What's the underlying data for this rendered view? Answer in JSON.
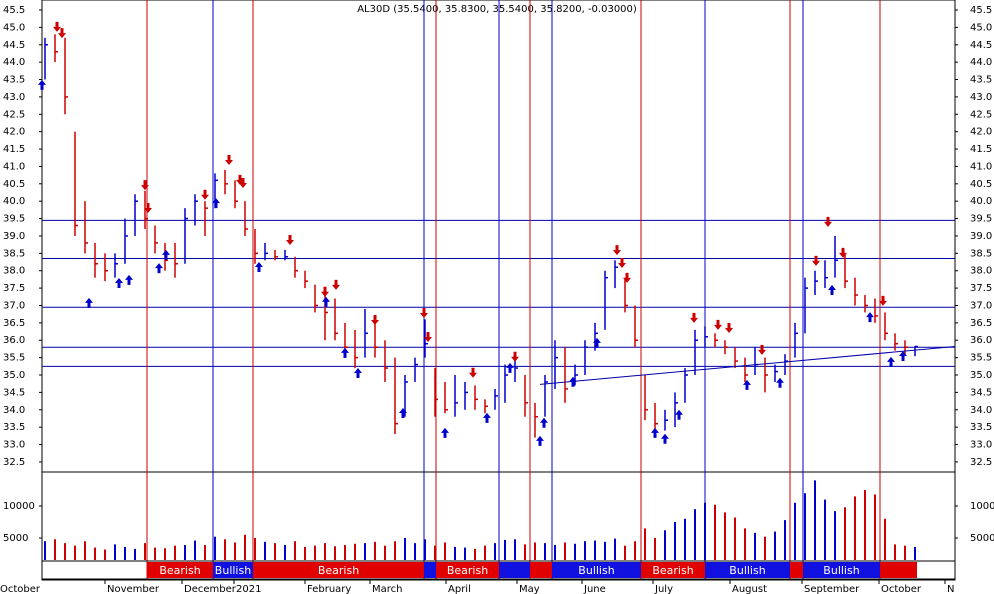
{
  "chart_data": [
    {
      "type": "ohlc",
      "title": "AL30D (35.5400, 35.8300, 35.5400, 35.8200, -0.03000)",
      "up_color": "#0000cc",
      "down_color": "#cc0000",
      "xlim": [
        -0.3,
        91
      ],
      "ylim": [
        32.21,
        45.73
      ],
      "yticks": [
        45.5,
        {
          "value": 45,
          "label": "45.0"
        },
        44.5,
        {
          "value": 44,
          "label": "44.0"
        },
        43.5,
        {
          "value": 43,
          "label": "43.0"
        },
        42.5,
        {
          "value": 42,
          "label": "42.0"
        },
        41.5,
        {
          "value": 41,
          "label": "41.0"
        },
        40.5,
        {
          "value": 40,
          "label": "40.0"
        },
        39.5,
        {
          "value": 39,
          "label": "39.0"
        },
        38.5,
        {
          "value": 38,
          "label": "38.0"
        },
        37.5,
        {
          "value": 37,
          "label": "37.0"
        },
        36.5,
        {
          "value": 36,
          "label": "36.0"
        },
        35.5,
        {
          "value": 35,
          "label": "35.0"
        },
        34.5,
        {
          "value": 34,
          "label": "34.0"
        },
        33.5,
        {
          "value": 33,
          "label": "33.0"
        },
        32.5
      ],
      "high": [
        44.7,
        44.8,
        44.7,
        42,
        40,
        38.8,
        38.5,
        38.5,
        39.5,
        40.2,
        40.3,
        39.3,
        38.8,
        38.8,
        39.8,
        40.2,
        40,
        40.8,
        40.9,
        40.6,
        40,
        39.2,
        38.8,
        38.6,
        38.6,
        38.4,
        38,
        37.6,
        37.3,
        37.2,
        36.5,
        36.3,
        36.9,
        36.5,
        36,
        35.5,
        35,
        35.5,
        36.6,
        35.2,
        34.8,
        35,
        34.8,
        34.7,
        34.3,
        34.6,
        35.3,
        35.5,
        35,
        34.2,
        35,
        36,
        35.8,
        35.3,
        36,
        36.5,
        38,
        38.3,
        37.8,
        37,
        35,
        34.2,
        34,
        34.5,
        35.2,
        36.3,
        36.4,
        36.2,
        36,
        35.8,
        35.5,
        35.8,
        35.5,
        35.3,
        35.6,
        36.5,
        37.8,
        38,
        38.3,
        39,
        38.5,
        37.8,
        37.3,
        37.2,
        36.8,
        36.2,
        36,
        35.83
      ],
      "low": [
        43.5,
        44,
        42.5,
        39,
        38.5,
        37.8,
        37.7,
        37.8,
        38.2,
        39,
        39.2,
        38.5,
        38,
        37.8,
        38.2,
        39.3,
        39,
        39.8,
        40.2,
        39.8,
        39,
        38.2,
        38.3,
        38.3,
        38.3,
        37.8,
        37.5,
        36.8,
        36,
        36,
        35.5,
        35.2,
        35.5,
        35.5,
        34.8,
        33.3,
        33.8,
        34.8,
        35.5,
        33.8,
        33.9,
        33.8,
        34,
        34,
        33.9,
        34,
        34.2,
        34.8,
        33.8,
        33.2,
        33.8,
        34.6,
        34.2,
        34.7,
        35,
        35.7,
        36.3,
        37.5,
        36.8,
        35.8,
        33.7,
        33.3,
        33.4,
        33.5,
        34.2,
        35,
        35.8,
        35.8,
        35.6,
        35.2,
        34.8,
        35,
        34.5,
        34.8,
        35,
        35.5,
        36.2,
        37.3,
        37.5,
        37.8,
        37.5,
        37,
        36.8,
        36.5,
        36,
        35.7,
        35.6,
        35.54
      ],
      "close": [
        44.5,
        44.3,
        43,
        39.3,
        38.8,
        38.2,
        38,
        38.2,
        39,
        40,
        39.5,
        38.8,
        38.3,
        38.2,
        39.5,
        40,
        39.8,
        40.6,
        40.5,
        40,
        39.2,
        38.5,
        38.5,
        38.4,
        38.4,
        38,
        37.7,
        37,
        36.8,
        36.2,
        35.8,
        35.5,
        36.2,
        35.8,
        35.2,
        33.6,
        34.8,
        35.3,
        35.9,
        34.3,
        34,
        34.2,
        34.5,
        34.3,
        34.1,
        34.4,
        35,
        35.2,
        34.2,
        33.8,
        34.8,
        35.5,
        34.6,
        35,
        35.8,
        36.2,
        37.8,
        38.1,
        37,
        36,
        34,
        33.6,
        33.7,
        34.2,
        35,
        36,
        36.1,
        36,
        35.8,
        35.4,
        35,
        35.3,
        35,
        35.1,
        35.4,
        36.2,
        37.5,
        37.7,
        37.8,
        38.3,
        37.7,
        37.3,
        37,
        36.7,
        36.2,
        35.9,
        35.8,
        35.82
      ],
      "levels": [
        39.45,
        38.35,
        36.95,
        35.8,
        35.25
      ],
      "level_color": "#0000aa",
      "trendline": {
        "x": [
          49.5,
          91
        ],
        "y": [
          34.73,
          35.82
        ]
      },
      "markers": [
        {
          "x": 10.2,
          "color": "#cc0000"
        },
        {
          "x": 16.8,
          "color": "#0000cc"
        },
        {
          "x": 20.8,
          "color": "#cc0000"
        },
        {
          "x": 37.9,
          "color": "#0000cc"
        },
        {
          "x": 39.1,
          "color": "#cc0000"
        },
        {
          "x": 45.4,
          "color": "#0000cc"
        },
        {
          "x": 48.5,
          "color": "#cc0000"
        },
        {
          "x": 50.7,
          "color": "#0000cc"
        },
        {
          "x": 59.6,
          "color": "#cc0000"
        },
        {
          "x": 66,
          "color": "#0000cc"
        },
        {
          "x": 74.5,
          "color": "#cc0000"
        },
        {
          "x": 75.8,
          "color": "#0000cc"
        },
        {
          "x": 83.5,
          "color": "#cc0000"
        }
      ],
      "sell_signals": [
        {
          "x": 1.2,
          "y": 44.87
        },
        {
          "x": 1.7,
          "y": 44.69
        },
        {
          "x": 10,
          "y": 40.32
        },
        {
          "x": 10.3,
          "y": 39.66
        },
        {
          "x": 16,
          "y": 40.04
        },
        {
          "x": 18.4,
          "y": 41.04
        },
        {
          "x": 19.5,
          "y": 40.47
        },
        {
          "x": 19.8,
          "y": 40.38
        },
        {
          "x": 24.5,
          "y": 38.74
        },
        {
          "x": 28,
          "y": 37.25
        },
        {
          "x": 29.1,
          "y": 37.45
        },
        {
          "x": 33,
          "y": 36.44
        },
        {
          "x": 37.9,
          "y": 36.64
        },
        {
          "x": 38.3,
          "y": 35.95
        },
        {
          "x": 42.8,
          "y": 34.92
        },
        {
          "x": 47,
          "y": 35.38
        },
        {
          "x": 57.2,
          "y": 38.45
        },
        {
          "x": 57.7,
          "y": 38.08
        },
        {
          "x": 58.2,
          "y": 37.65
        },
        {
          "x": 64.9,
          "y": 36.5
        },
        {
          "x": 67.3,
          "y": 36.3
        },
        {
          "x": 68.4,
          "y": 36.21
        },
        {
          "x": 71.7,
          "y": 35.58
        },
        {
          "x": 78.3,
          "y": 39.26
        },
        {
          "x": 77.1,
          "y": 38.14
        },
        {
          "x": 79.8,
          "y": 38.37
        },
        {
          "x": 83.8,
          "y": 36.99
        }
      ],
      "buy_signals": [
        {
          "x": -0.3,
          "y": 43.49
        },
        {
          "x": 4.4,
          "y": 37.22
        },
        {
          "x": 7.4,
          "y": 37.79
        },
        {
          "x": 8.4,
          "y": 37.88
        },
        {
          "x": 11.4,
          "y": 38.22
        },
        {
          "x": 12.1,
          "y": 38.6
        },
        {
          "x": 17.1,
          "y": 40.09
        },
        {
          "x": 21.4,
          "y": 38.25
        },
        {
          "x": 28.1,
          "y": 37.25
        },
        {
          "x": 30,
          "y": 35.78
        },
        {
          "x": 31.3,
          "y": 35.2
        },
        {
          "x": 35.8,
          "y": 34.05
        },
        {
          "x": 40,
          "y": 33.48
        },
        {
          "x": 44.2,
          "y": 33.91
        },
        {
          "x": 46.5,
          "y": 35.35
        },
        {
          "x": 49.5,
          "y": 33.25
        },
        {
          "x": 49.9,
          "y": 33.77
        },
        {
          "x": 52.8,
          "y": 34.95
        },
        {
          "x": 55.2,
          "y": 36.07
        },
        {
          "x": 61,
          "y": 33.48
        },
        {
          "x": 62,
          "y": 33.31
        },
        {
          "x": 63.4,
          "y": 34
        },
        {
          "x": 70.2,
          "y": 34.86
        },
        {
          "x": 73.5,
          "y": 34.92
        },
        {
          "x": 78.7,
          "y": 37.59
        },
        {
          "x": 82.5,
          "y": 36.81
        },
        {
          "x": 84.6,
          "y": 35.52
        },
        {
          "x": 85.8,
          "y": 35.69
        }
      ],
      "signals": [
        {
          "start": 10.2,
          "end": 16.8,
          "label": "Bearish",
          "color": "#e00000"
        },
        {
          "start": 16.8,
          "end": 20.8,
          "label": "Bullish",
          "color": "#1010e0"
        },
        {
          "start": 20.8,
          "end": 37.9,
          "label": "Bearish",
          "color": "#e00000"
        },
        {
          "start": 37.9,
          "end": 39.1,
          "label": null,
          "color": "#1010e0"
        },
        {
          "start": 39.1,
          "end": 45.4,
          "label": "Bearish",
          "color": "#e00000"
        },
        {
          "start": 45.4,
          "end": 48.5,
          "label": null,
          "color": "#1010e0"
        },
        {
          "start": 48.5,
          "end": 50.7,
          "label": null,
          "color": "#e00000"
        },
        {
          "start": 50.7,
          "end": 59.6,
          "label": "Bullish",
          "color": "#1010e0"
        },
        {
          "start": 59.6,
          "end": 66,
          "label": "Bearish",
          "color": "#e00000"
        },
        {
          "start": 66,
          "end": 74.5,
          "label": "Bullish",
          "color": "#1010e0"
        },
        {
          "start": 74.5,
          "end": 75.8,
          "label": null,
          "color": "#e00000"
        },
        {
          "start": 75.8,
          "end": 83.5,
          "label": "Bullish",
          "color": "#1010e0"
        },
        {
          "start": 83.5,
          "end": 87.2,
          "label": null,
          "color": "#e00000"
        }
      ]
    },
    {
      "type": "volume",
      "xlim": [
        -0.3,
        91
      ],
      "ylim": [
        1560,
        15000
      ],
      "yticks": [
        10000,
        5000
      ],
      "values": [
        4500,
        4800,
        4200,
        3800,
        4500,
        3500,
        3200,
        4000,
        3600,
        3300,
        4200,
        3500,
        3400,
        3800,
        3900,
        4600,
        3900,
        5200,
        4800,
        4300,
        5500,
        5000,
        4400,
        4200,
        3900,
        4500,
        3600,
        3800,
        4200,
        3700,
        3900,
        4100,
        4200,
        4400,
        3800,
        4500,
        5000,
        4200,
        4800,
        3800,
        4300,
        3600,
        3500,
        3300,
        3800,
        4200,
        4700,
        4800,
        4000,
        4300,
        4200,
        3900,
        4300,
        4100,
        4500,
        4600,
        4400,
        4900,
        3800,
        4500,
        6500,
        5000,
        6200,
        7500,
        8000,
        9500,
        10500,
        10200,
        9000,
        8200,
        6500,
        5800,
        5200,
        6000,
        7800,
        10500,
        12000,
        14000,
        11000,
        9200,
        9800,
        11500,
        12500,
        11800,
        8000,
        4000,
        3800,
        3600
      ],
      "xticks": [
        {
          "value": -4.7,
          "label": "October"
        },
        {
          "value": 6,
          "label": "November"
        },
        {
          "value": 13.7,
          "label": "December"
        },
        {
          "value": 18.9,
          "label": "2021"
        },
        {
          "value": 26,
          "label": "February"
        },
        {
          "value": 32.5,
          "label": "March"
        },
        {
          "value": 40.1,
          "label": "April"
        },
        {
          "value": 47.2,
          "label": "May"
        },
        {
          "value": 53.7,
          "label": "June"
        },
        {
          "value": 60.8,
          "label": "July"
        },
        {
          "value": 68.5,
          "label": "August"
        },
        {
          "value": 75.7,
          "label": "September"
        },
        {
          "value": 83.4,
          "label": "October"
        },
        {
          "value": 90,
          "label": "N"
        }
      ]
    }
  ]
}
